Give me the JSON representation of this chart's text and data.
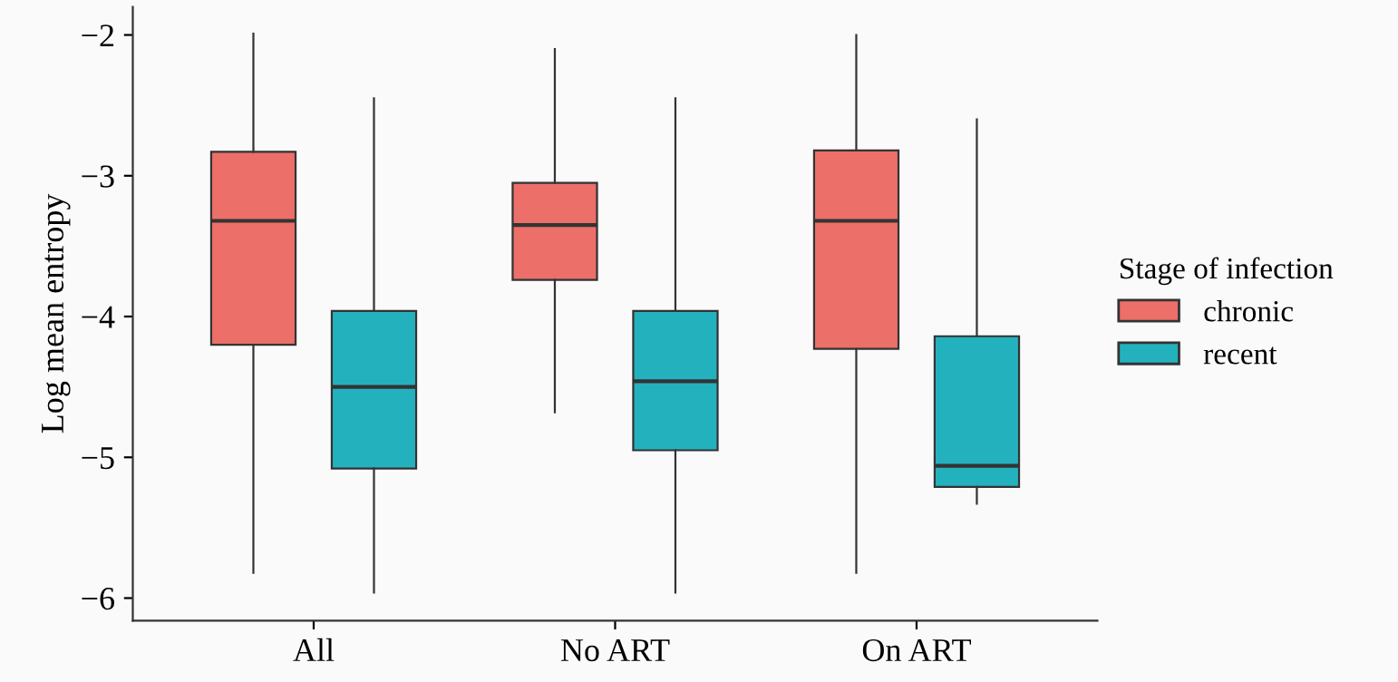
{
  "chart_data": {
    "type": "box",
    "ylabel": "Log mean entropy",
    "legend_title": "Stage of infection",
    "legend": "right",
    "grid": false,
    "categories": [
      "All",
      "No ART",
      "On ART"
    ],
    "ylim": [
      -6.16,
      -1.8
    ],
    "yticks": [
      -6,
      -5,
      -4,
      -3,
      -2
    ],
    "series": [
      {
        "name": "chronic",
        "color": "#ec6f69",
        "boxes": [
          {
            "low": -5.82,
            "q1": -4.2,
            "median": -3.32,
            "q3": -2.83,
            "high": -1.99
          },
          {
            "low": -4.68,
            "q1": -3.74,
            "median": -3.35,
            "q3": -3.05,
            "high": -2.1
          },
          {
            "low": -5.82,
            "q1": -4.23,
            "median": -3.32,
            "q3": -2.82,
            "high": -2.0
          }
        ]
      },
      {
        "name": "recent",
        "color": "#24b1be",
        "boxes": [
          {
            "low": -5.96,
            "q1": -5.08,
            "median": -4.5,
            "q3": -3.96,
            "high": -2.45
          },
          {
            "low": -5.96,
            "q1": -4.95,
            "median": -4.46,
            "q3": -3.96,
            "high": -2.45
          },
          {
            "low": -5.33,
            "q1": -5.21,
            "median": -5.06,
            "q3": -4.14,
            "high": -2.6
          }
        ]
      }
    ]
  }
}
